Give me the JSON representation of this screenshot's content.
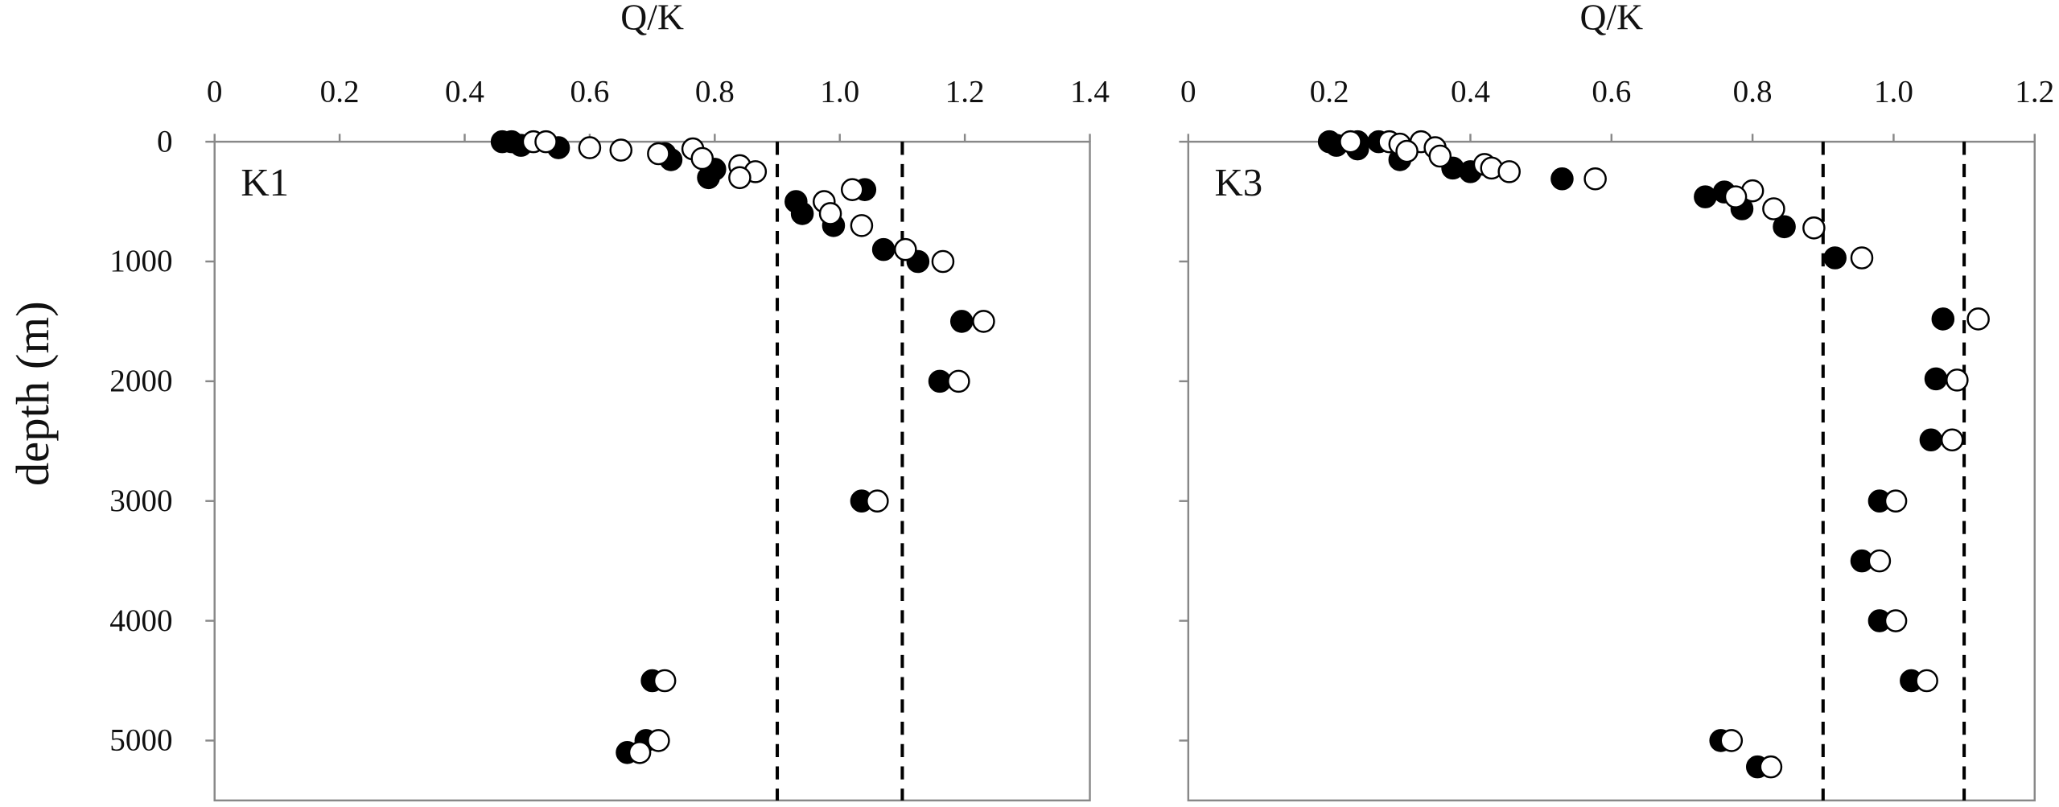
{
  "chart_data": [
    {
      "type": "scatter",
      "xlabel": "Q/K",
      "ylabel": "depth (m)",
      "panel_label": "K1",
      "xlim": [
        0,
        1.4
      ],
      "xticks": [
        0,
        0.2,
        0.4,
        0.6,
        0.8,
        {
          "value": 1,
          "label": "1.0"
        },
        1.2,
        1.4
      ],
      "ylim": [
        0,
        5500
      ],
      "yticks": [
        0,
        1000,
        2000,
        3000,
        4000,
        5000
      ],
      "y_inverted": true,
      "show_ytick_labels": true,
      "vlines": [
        0.9,
        1.1
      ],
      "series": [
        {
          "color": "#000000",
          "fill": "#000000",
          "x": [
            0.46,
            0.475,
            0.49,
            0.55,
            0.72,
            0.73,
            0.8,
            0.79,
            1.04,
            0.93,
            0.94,
            0.99,
            1.07,
            1.125,
            1.195,
            1.16,
            1.035,
            0.7,
            0.69,
            0.66
          ],
          "values": [
            0,
            0,
            30,
            50,
            100,
            150,
            230,
            300,
            400,
            500,
            600,
            700,
            900,
            1000,
            1500,
            2000,
            3000,
            4500,
            5000,
            5100
          ]
        },
        {
          "color": "#000000",
          "fill": "#ffffff",
          "x": [
            0.51,
            0.53,
            0.6,
            0.65,
            0.71,
            0.765,
            0.78,
            0.84,
            0.865,
            0.84,
            1.02,
            0.975,
            0.985,
            1.035,
            1.105,
            1.165,
            1.23,
            1.19,
            1.06,
            0.72,
            0.71,
            0.68
          ],
          "values": [
            0,
            0,
            50,
            70,
            100,
            60,
            140,
            200,
            250,
            300,
            400,
            500,
            600,
            700,
            900,
            1000,
            1500,
            2000,
            3000,
            4500,
            5000,
            5100
          ]
        }
      ]
    },
    {
      "type": "scatter",
      "xlabel": "Q/K",
      "panel_label": "K3",
      "xlim": [
        0,
        1.2
      ],
      "xticks": [
        0,
        0.2,
        0.4,
        0.6,
        0.8,
        {
          "value": 1,
          "label": "1.0"
        },
        1.2
      ],
      "ylim": [
        0,
        5500
      ],
      "yticks": [
        0,
        1000,
        2000,
        3000,
        4000,
        5000
      ],
      "y_inverted": true,
      "show_ytick_labels": false,
      "vlines": [
        0.9,
        1.1
      ],
      "series": [
        {
          "color": "#000000",
          "fill": "#000000",
          "x": [
            0.2,
            0.21,
            0.24,
            0.24,
            0.27,
            0.3,
            0.375,
            0.4,
            0.53,
            0.733,
            0.76,
            0.785,
            0.845,
            0.917,
            1.07,
            1.06,
            1.053,
            0.98,
            0.955,
            0.98,
            1.025,
            0.755,
            0.807
          ],
          "values": [
            0,
            30,
            0,
            60,
            0,
            150,
            220,
            250,
            310,
            460,
            420,
            560,
            710,
            970,
            1480,
            1980,
            2490,
            3000,
            3500,
            4000,
            4500,
            5000,
            5220
          ]
        },
        {
          "color": "#000000",
          "fill": "#ffffff",
          "x": [
            0.23,
            0.285,
            0.3,
            0.33,
            0.35,
            0.357,
            0.31,
            0.42,
            0.43,
            0.455,
            0.577,
            0.8,
            0.776,
            0.83,
            0.887,
            0.955,
            1.12,
            1.09,
            1.083,
            1.003,
            0.98,
            1.003,
            1.047,
            0.77,
            0.826
          ],
          "values": [
            0,
            0,
            20,
            0,
            50,
            120,
            80,
            190,
            220,
            250,
            310,
            410,
            460,
            560,
            720,
            970,
            1480,
            1990,
            2490,
            3000,
            3500,
            4000,
            4500,
            5000,
            5220
          ]
        }
      ]
    }
  ]
}
